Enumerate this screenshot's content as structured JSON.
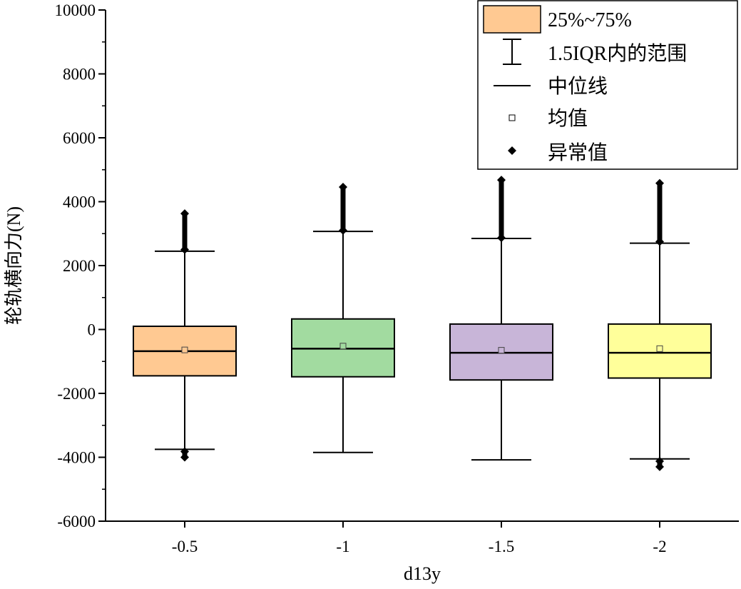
{
  "chart_data": {
    "type": "box",
    "xlabel": "d13y",
    "ylabel": "轮轨横向力(N)",
    "ylim": [
      -6000,
      10000
    ],
    "y_ticks": [
      "10000",
      "8000",
      "6000",
      "4000",
      "2000",
      "0",
      "-2000",
      "-4000",
      "-6000"
    ],
    "categories": [
      "-0.5",
      "-1",
      "-1.5",
      "-2"
    ],
    "boxes": [
      {
        "category": "-0.5",
        "q1": -1450,
        "median": -680,
        "q3": 100,
        "mean": -640,
        "whisker_low": -3750,
        "whisker_high": 2450,
        "outlier_low": [
          -3800,
          -4000
        ],
        "outlier_high": [
          2500,
          3650
        ],
        "color": "#FFC992"
      },
      {
        "category": "-1",
        "q1": -1480,
        "median": -600,
        "q3": 330,
        "mean": -520,
        "whisker_low": -3850,
        "whisker_high": 3070,
        "outlier_low": null,
        "outlier_high": [
          3100,
          4480
        ],
        "color": "#A2DBA0"
      },
      {
        "category": "-1.5",
        "q1": -1580,
        "median": -730,
        "q3": 170,
        "mean": -650,
        "whisker_low": -4080,
        "whisker_high": 2850,
        "outlier_low": null,
        "outlier_high": [
          2870,
          4700
        ],
        "color": "#C8B5D8"
      },
      {
        "category": "-2",
        "q1": -1520,
        "median": -730,
        "q3": 170,
        "mean": -600,
        "whisker_low": -4050,
        "whisker_high": 2700,
        "outlier_low": [
          -4100,
          -4300
        ],
        "outlier_high": [
          2750,
          4600
        ],
        "color": "#FFFF9A"
      }
    ],
    "legend": {
      "position": "top-right",
      "items": [
        "25%~75%",
        "1.5IQR内的范围",
        "中位线",
        "均值",
        "异常值"
      ],
      "swatch_color": "#FFC992"
    }
  }
}
